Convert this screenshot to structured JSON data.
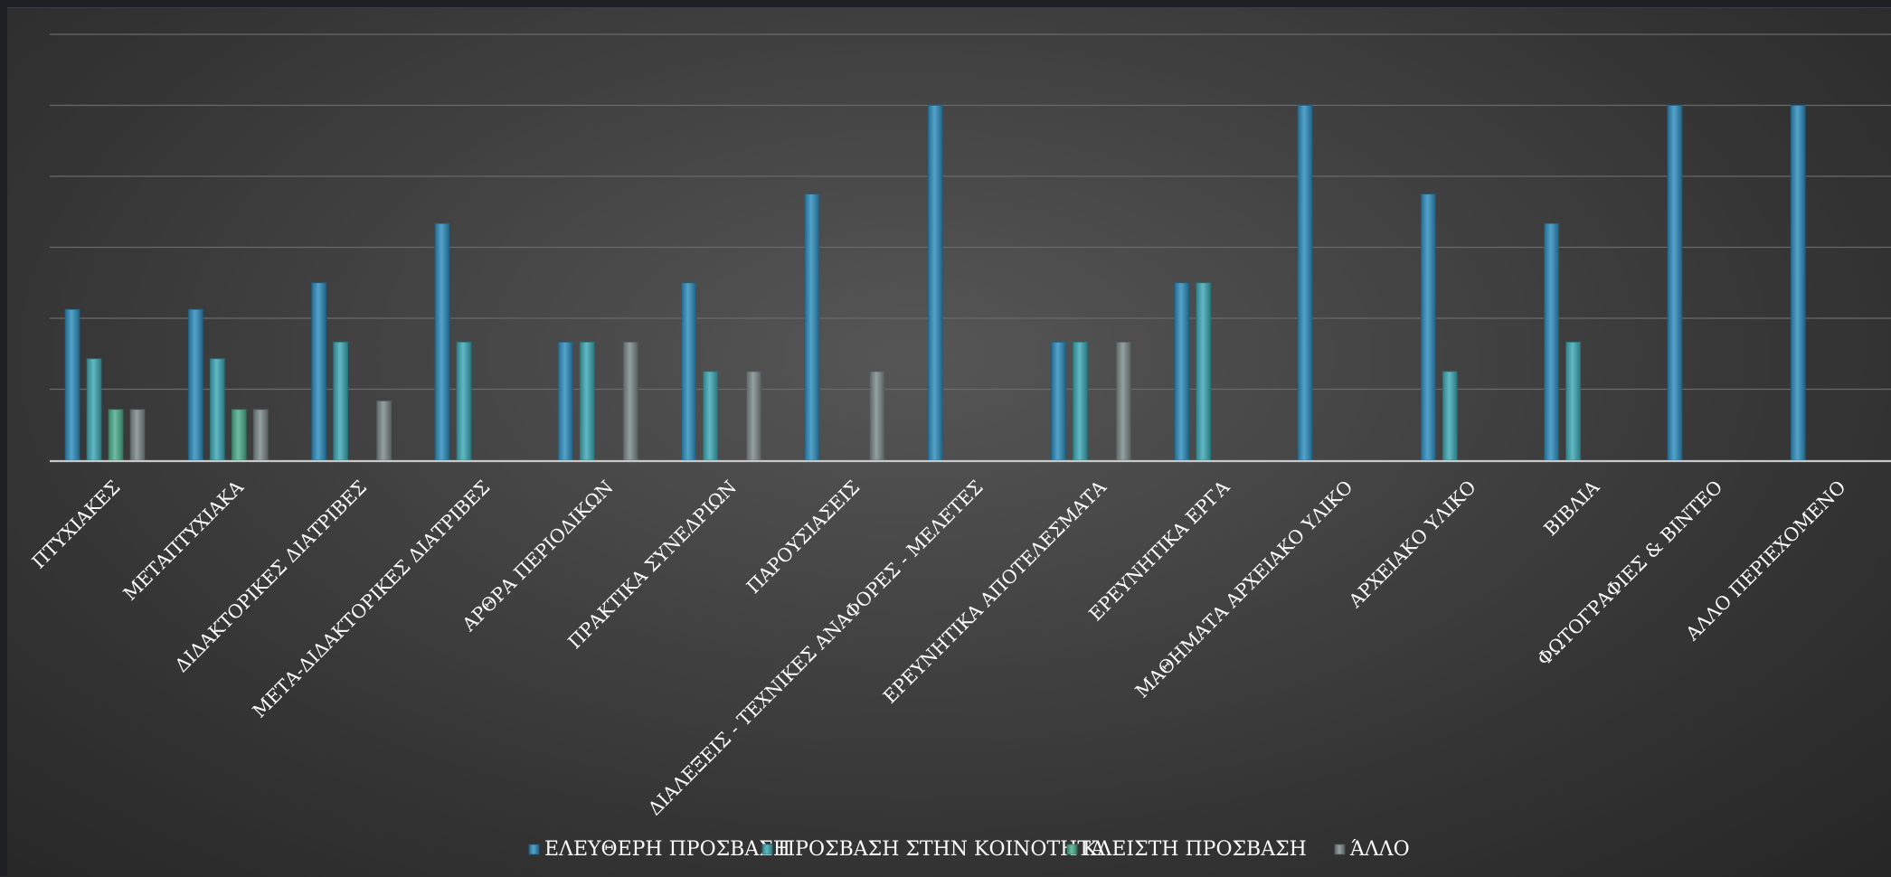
{
  "chart_data": {
    "type": "bar",
    "categories": [
      "ΠΤΥΧΙΑΚΕΣ",
      "ΜΕΤΑΠΤΥΧΙΑΚΑ",
      "ΔΙΔΑΚΤΟΡΙΚΕΣ ΔΙΑΤΡΙΒΕΣ",
      "ΜΕΤΑ-ΔΙΔΑΚΤΟΡΙΚΕΣ ΔΙΑΤΡΙΒΕΣ",
      "ΑΡΘΡΑ ΠΕΡΙΟΔΙΚΩΝ",
      "ΠΡΑΚΤΙΚΑ ΣΥΝΕΔΡΙΩΝ",
      "ΠΑΡΟΥΣΙΑΣΕΙΣ",
      "ΔΙΑΛΕΞΕΙΣ - ΤΕΧΝΙΚΕΣ ΑΝΑΦΟΡΕΣ - ΜΕΛΕΤΕΣ",
      "ΕΡΕΥΝΗΤΙΚΑ ΑΠΟΤΕΛΕΣΜΑΤΑ",
      "ΕΡΕΥΝΗΤΙΚΑ  ΕΡΓΑ",
      "ΜΑΘΗΜΑΤΑ ΑΡΧΕΙΑΚΟ ΥΛΙΚΟ",
      "ΑΡΧΕΙΑΚΟ ΥΛΙΚΟ",
      "ΒΙΒΛΙΑ",
      "ΦΩΤΟΓΡΑΦΙΕΣ &  ΒΙΝΤΕΟ",
      "ΑΛΛΟ ΠΕΡΙΕΧΟΜΕΝΟ"
    ],
    "series": [
      {
        "name": "ΕΛΕΥΘΕΡΗ ΠΡΟΣΒΑΣΗ",
        "color": "#2f8fc0",
        "values": [
          0.425,
          0.425,
          0.5,
          0.667,
          0.333,
          0.5,
          0.75,
          1.0,
          0.333,
          0.5,
          1.0,
          0.75,
          0.667,
          1.0,
          1.0
        ]
      },
      {
        "name": "ΠΡΟΣΒΑΣΗ ΣΤΗΝ ΚΟΙΝΟΤΗΤΑ",
        "color": "#3eaab7",
        "values": [
          0.286,
          0.286,
          0.333,
          0.333,
          0.333,
          0.25,
          0,
          0,
          0.333,
          0.5,
          0,
          0.25,
          0.333,
          0,
          0
        ]
      },
      {
        "name": "ΚΛΕΙΣΤΗ ΠΡΟΣΒΑΣΗ",
        "color": "#4fae8f",
        "values": [
          0.143,
          0.143,
          0,
          0,
          0,
          0,
          0,
          0,
          0,
          0,
          0,
          0,
          0,
          0,
          0
        ]
      },
      {
        "name": "ΆΛΛΟ",
        "color": "#7f8b8b",
        "values": [
          0.143,
          0.143,
          0.167,
          0,
          0.333,
          0.25,
          0.25,
          0,
          0.333,
          0,
          0,
          0,
          0,
          0,
          0
        ]
      }
    ],
    "ylim": [
      0,
      1.2
    ],
    "gridlines": 6,
    "grid": true,
    "legend": "bottom",
    "title": "",
    "xlabel": "",
    "ylabel": ""
  }
}
